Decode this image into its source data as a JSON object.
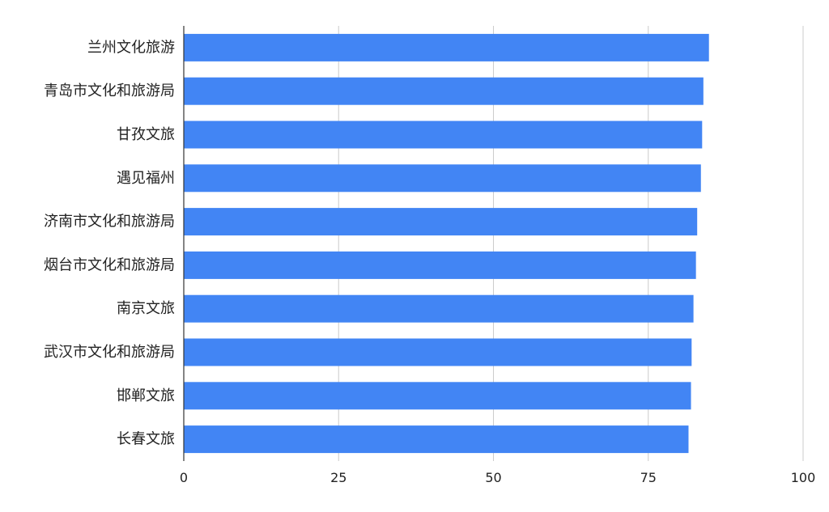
{
  "chart_data": {
    "type": "bar",
    "orientation": "horizontal",
    "title": "",
    "xlabel": "",
    "ylabel": "",
    "categories": [
      "兰州文化旅游",
      "青岛市文化和旅游局",
      "甘孜文旅",
      "遇见福州",
      "济南市文化和旅游局",
      "烟台市文化和旅游局",
      "南京文旅",
      "武汉市文化和旅游局",
      "邯郸文旅",
      "长春文旅"
    ],
    "values": [
      84.8,
      83.9,
      83.7,
      83.5,
      82.9,
      82.7,
      82.3,
      82.0,
      81.9,
      81.5
    ],
    "xlim": [
      0,
      100
    ],
    "xticks": [
      "0",
      "25",
      "50",
      "75",
      "100"
    ],
    "grid": true,
    "legend": "none",
    "colors": {
      "bar": "#4285f4",
      "grid": "#cccccc",
      "axis": "#333333"
    }
  }
}
